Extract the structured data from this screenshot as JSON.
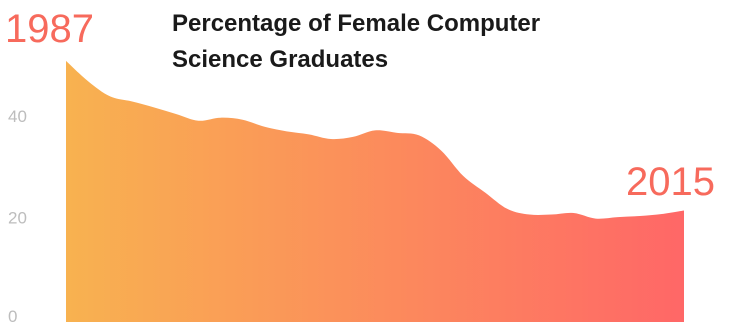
{
  "chart_data": {
    "type": "area",
    "title_lines": [
      "Percentage of Female Computer",
      "Science Graduates"
    ],
    "start_label": "1987",
    "end_label": "2015",
    "x": [
      1987,
      1988,
      1989,
      1990,
      1991,
      1992,
      1993,
      1994,
      1995,
      1996,
      1997,
      1998,
      1999,
      2000,
      2001,
      2002,
      2003,
      2004,
      2005,
      2006,
      2007,
      2008,
      2009,
      2010,
      2011,
      2012,
      2013,
      2014,
      2015
    ],
    "values": [
      51.5,
      47.5,
      44.5,
      43.5,
      42.3,
      41.0,
      39.7,
      40.3,
      39.9,
      38.5,
      37.6,
      37.0,
      36.1,
      36.5,
      37.8,
      37.3,
      36.8,
      33.8,
      28.8,
      25.5,
      22.3,
      21.2,
      21.2,
      21.5,
      20.4,
      20.7,
      20.9,
      21.3,
      22.0
    ],
    "y_ticks": [
      0,
      20,
      40
    ],
    "ylim": [
      0,
      52
    ],
    "colors": {
      "start": "#f8b250",
      "end": "#ff6767",
      "label": "#f76a5c"
    }
  }
}
